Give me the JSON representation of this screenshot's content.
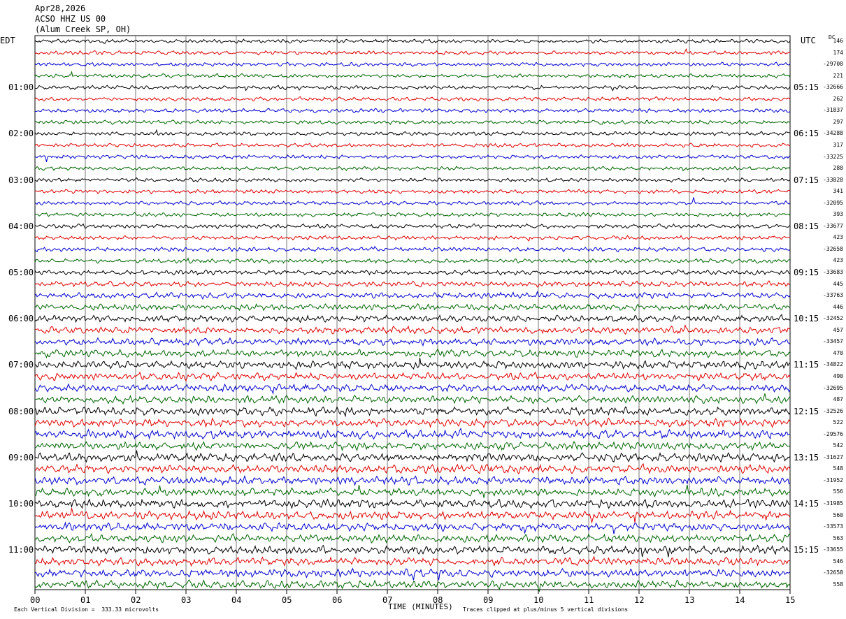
{
  "header": {
    "date": "Apr28,2026",
    "station": "ACSO HHZ US 00",
    "site": "(Alum Creek SP, OH)"
  },
  "timezone_left": "EDT",
  "timezone_right": "UTC",
  "dc_header": "DC",
  "left_hour_labels": [
    "01:00",
    "02:00",
    "03:00",
    "04:00",
    "05:00",
    "06:00",
    "07:00",
    "08:00",
    "09:00",
    "10:00",
    "11:00"
  ],
  "right_hour_labels": [
    "05:15",
    "06:15",
    "07:15",
    "08:15",
    "09:15",
    "10:15",
    "11:15",
    "12:15",
    "13:15",
    "14:15",
    "15:15"
  ],
  "dc_values": [
    "146",
    "174",
    "-29708",
    "221",
    "-32666",
    "262",
    "-31837",
    "297",
    "-34288",
    "317",
    "-33225",
    "288",
    "-33828",
    "341",
    "-32095",
    "393",
    "-33677",
    "423",
    "-32658",
    "423",
    "-33683",
    "445",
    "-33763",
    "446",
    "-32452",
    "457",
    "-33457",
    "470",
    "-34822",
    "490",
    "-32695",
    "487",
    "-32526",
    "522",
    "-29576",
    "542",
    "-31627",
    "548",
    "-31952",
    "556",
    "-31985",
    "560",
    "-33573",
    "563",
    "-33655",
    "546",
    "-32658",
    "558"
  ],
  "footer": {
    "scale_note": "Each Vertical Division =  333.33 microvolts",
    "axis_title": "TIME (MINUTES)",
    "clip_note": "Traces clipped at plus/minus 5 vertical divisions"
  },
  "chart_data": {
    "type": "line",
    "title": "ACSO HHZ US 00",
    "xlabel": "TIME (MINUTES)",
    "ylabel": "",
    "x_ticks": [
      "00",
      "01",
      "02",
      "03",
      "04",
      "05",
      "06",
      "07",
      "08",
      "09",
      "10",
      "11",
      "12",
      "13",
      "14",
      "15"
    ],
    "xlim": [
      0,
      15
    ],
    "grid": "vertical, every minute",
    "trace_colors": [
      "#000000",
      "#e00000",
      "#0000d0",
      "#006600"
    ],
    "trace_count": 48,
    "minutes_per_trace": 15,
    "relative_noise_amplitude": [
      0.3,
      0.3,
      0.3,
      0.3,
      0.3,
      0.3,
      0.3,
      0.3,
      0.3,
      0.3,
      0.3,
      0.3,
      0.3,
      0.3,
      0.3,
      0.3,
      0.32,
      0.32,
      0.34,
      0.34,
      0.38,
      0.42,
      0.46,
      0.48,
      0.52,
      0.55,
      0.55,
      0.55,
      0.6,
      0.58,
      0.58,
      0.58,
      0.62,
      0.62,
      0.64,
      0.6,
      0.66,
      0.66,
      0.64,
      0.6,
      0.68,
      0.64,
      0.62,
      0.6,
      0.64,
      0.62,
      0.62,
      0.6
    ]
  }
}
